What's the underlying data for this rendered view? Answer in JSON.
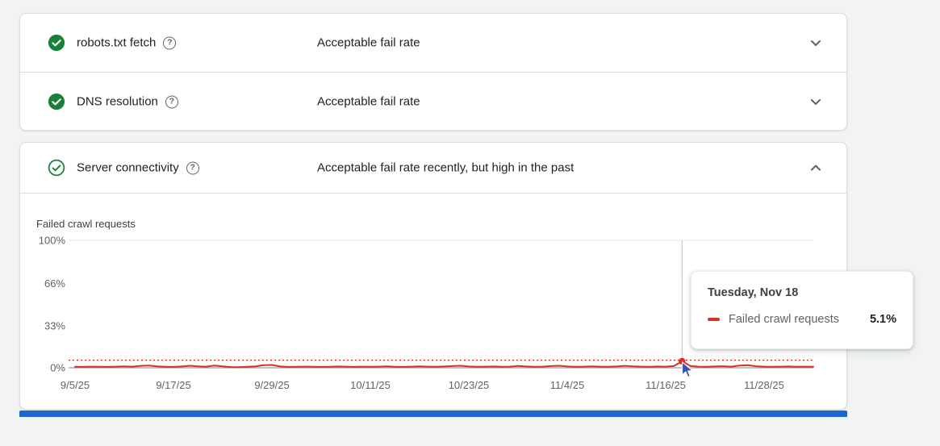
{
  "page": {
    "background": "#f1f3f4"
  },
  "icons": {
    "help_glyph": "?"
  },
  "colors": {
    "green": "#188038",
    "red": "#d93025",
    "blue_bar": "#1967d2",
    "text_primary": "#202124",
    "text_secondary": "#5f6368"
  },
  "host_status": {
    "rows": [
      {
        "label": "robots.txt fetch",
        "status": "Acceptable fail rate",
        "state": "collapsed",
        "icon": "check-circle-filled-green"
      },
      {
        "label": "DNS resolution",
        "status": "Acceptable fail rate",
        "state": "collapsed",
        "icon": "check-circle-filled-green"
      },
      {
        "label": "Server connectivity",
        "status": "Acceptable fail rate recently, but high in the past",
        "state": "expanded",
        "icon": "check-circle-outline-green"
      }
    ]
  },
  "chart_data": {
    "type": "line",
    "title": "Failed crawl requests",
    "xlabel": "",
    "ylabel": "",
    "ylim": [
      0,
      100
    ],
    "grid": "top-gridline-and-baseline",
    "legend_position": "tooltip-only",
    "yticks": [
      {
        "label": "100%",
        "value": 100
      },
      {
        "label": "66%",
        "value": 66
      },
      {
        "label": "33%",
        "value": 33
      },
      {
        "label": "0%",
        "value": 0
      }
    ],
    "xticks": [
      {
        "label": "9/5/25",
        "day": 0
      },
      {
        "label": "9/17/25",
        "day": 12
      },
      {
        "label": "9/29/25",
        "day": 24
      },
      {
        "label": "10/11/25",
        "day": 36
      },
      {
        "label": "10/23/25",
        "day": 48
      },
      {
        "label": "11/4/25",
        "day": 60
      },
      {
        "label": "11/16/25",
        "day": 72
      },
      {
        "label": "11/28/25",
        "day": 84
      }
    ],
    "total_days": 90,
    "threshold_percent": 6,
    "series": [
      {
        "name": "Failed crawl requests",
        "color": "#d93025",
        "values": [
          0.8,
          0.7,
          0.9,
          0.8,
          0.7,
          0.9,
          1.1,
          0.9,
          1.5,
          1.8,
          1.1,
          0.8,
          0.7,
          1.0,
          1.6,
          1.1,
          0.9,
          1.7,
          1.1,
          0.6,
          0.5,
          0.8,
          1.1,
          2.0,
          2.2,
          1.0,
          0.7,
          0.8,
          0.9,
          0.8,
          0.7,
          0.8,
          1.0,
          0.9,
          0.7,
          0.9,
          0.8,
          0.9,
          1.1,
          0.8,
          0.7,
          0.9,
          1.1,
          0.9,
          0.8,
          1.0,
          1.3,
          1.6,
          1.0,
          0.8,
          0.9,
          1.0,
          0.8,
          0.9,
          1.4,
          1.0,
          0.8,
          0.9,
          1.3,
          1.6,
          1.0,
          0.8,
          0.9,
          1.1,
          0.9,
          0.8,
          1.0,
          1.5,
          1.1,
          0.9,
          0.8,
          1.0,
          0.9,
          1.3,
          5.1,
          1.4,
          0.9,
          0.8,
          1.0,
          1.2,
          0.9,
          1.7,
          2.0,
          1.2,
          0.9,
          0.8,
          0.9,
          1.0,
          0.8,
          0.9,
          0.8
        ]
      }
    ],
    "hover": {
      "day": 74,
      "date_label": "Tuesday, Nov 18",
      "value_percent": 5.1
    }
  },
  "tooltip": {
    "title": "Tuesday, Nov 18",
    "series": "Failed crawl requests",
    "value": "5.1%"
  }
}
